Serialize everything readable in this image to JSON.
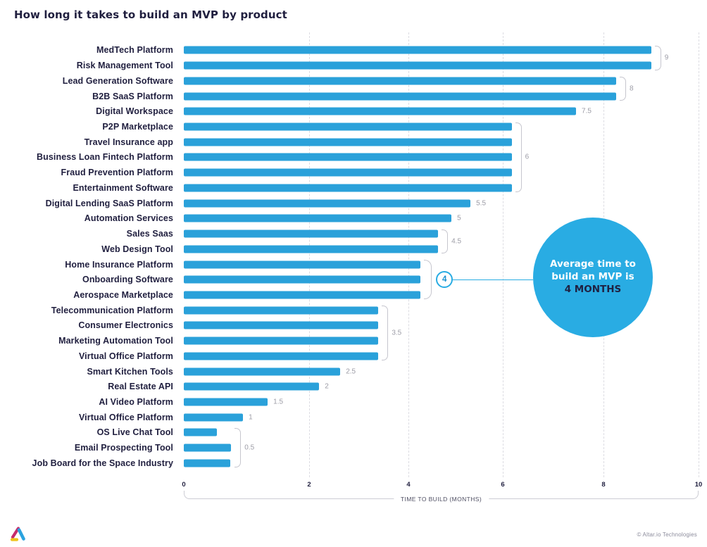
{
  "title": "How long it takes to build an MVP by product",
  "chart_data": {
    "type": "bar",
    "orientation": "horizontal",
    "title": "How long it takes to build an MVP by product",
    "xlabel": "TIME TO BUILD (MONTHS)",
    "xlim": [
      0,
      10
    ],
    "grid": true,
    "legend": false,
    "x_ticks": [
      {
        "label": "0",
        "pct": 0
      },
      {
        "label": "2",
        "pct": 24.35
      },
      {
        "label": "4",
        "pct": 43.64
      },
      {
        "label": "6",
        "pct": 61.97
      },
      {
        "label": "8",
        "pct": 81.53
      },
      {
        "label": "10",
        "pct": 100
      }
    ],
    "categories": [
      "MedTech Platform",
      "Risk Management Tool",
      "Lead Generation Software",
      "B2B SaaS Platform",
      "Digital Workspace",
      "P2P Marketplace",
      "Travel Insurance app",
      "Business Loan Fintech Platform",
      "Fraud Prevention Platform",
      "Entertainment Software",
      "Digital Lending SaaS Platform",
      "Automation Services",
      "Sales Saas",
      "Web Design Tool",
      "Home Insurance Platform",
      "Onboarding Software",
      "Aerospace Marketplace",
      "Telecommunication Platform",
      "Consumer Electronics",
      "Marketing Automation Tool",
      "Virtual Office Platform",
      "Smart Kitchen Tools",
      "Real Estate API",
      "AI Video Platform",
      "Virtual Office Platform",
      "OS Live Chat Tool",
      "Email Prospecting Tool",
      "Job Board for the Space Industry"
    ],
    "values": [
      9,
      9,
      8,
      8,
      7.5,
      6,
      6,
      6,
      6,
      6,
      5.5,
      5,
      4.5,
      4.5,
      4,
      4,
      4,
      3.5,
      3.5,
      3.5,
      3.5,
      2.5,
      2,
      1.5,
      1,
      0.5,
      0.5,
      0.5
    ],
    "bar_display_pct": [
      90.8,
      90.8,
      84.0,
      84.0,
      76.2,
      63.7,
      63.7,
      63.7,
      63.7,
      63.7,
      55.7,
      52.0,
      49.4,
      49.4,
      46.0,
      46.0,
      46.0,
      37.8,
      37.8,
      37.8,
      37.8,
      30.4,
      26.3,
      16.3,
      11.5,
      6.4,
      9.2,
      9.0
    ],
    "annotations": [
      {
        "label": "9",
        "row_start": 0,
        "row_end": 1,
        "style": "bracket"
      },
      {
        "label": "8",
        "row_start": 2,
        "row_end": 3,
        "style": "bracket"
      },
      {
        "label": "7.5",
        "row_start": 4,
        "row_end": 4,
        "style": "text"
      },
      {
        "label": "6",
        "row_start": 5,
        "row_end": 9,
        "style": "bracket"
      },
      {
        "label": "5.5",
        "row_start": 10,
        "row_end": 10,
        "style": "text"
      },
      {
        "label": "5",
        "row_start": 11,
        "row_end": 11,
        "style": "text"
      },
      {
        "label": "4.5",
        "row_start": 12,
        "row_end": 13,
        "style": "bracket"
      },
      {
        "label": "4",
        "row_start": 14,
        "row_end": 16,
        "style": "bracket-circle"
      },
      {
        "label": "3.5",
        "row_start": 17,
        "row_end": 20,
        "style": "bracket"
      },
      {
        "label": "2.5",
        "row_start": 21,
        "row_end": 21,
        "style": "text"
      },
      {
        "label": "2",
        "row_start": 22,
        "row_end": 22,
        "style": "text"
      },
      {
        "label": "1.5",
        "row_start": 23,
        "row_end": 23,
        "style": "text"
      },
      {
        "label": "1",
        "row_start": 24,
        "row_end": 24,
        "style": "text"
      },
      {
        "label": "0.5",
        "row_start": 25,
        "row_end": 27,
        "style": "bracket"
      }
    ],
    "average_callout": {
      "text": "Average time to build an MVP is",
      "highlight": "4 MONTHS",
      "value_badge": "4"
    }
  },
  "footer": {
    "attribution": "© Altar.io Technologies",
    "logo_name": "altar-logo"
  },
  "colors": {
    "bar": "#2AA1DA",
    "circle": "#29ACE3",
    "navy": "#201F3F",
    "annotation": "#9C9CA6",
    "bracket": "#C6C6CE",
    "gridline": "#DCDCE2",
    "axis_label": "#4F4F63",
    "attribution": "#8C8C9C"
  }
}
